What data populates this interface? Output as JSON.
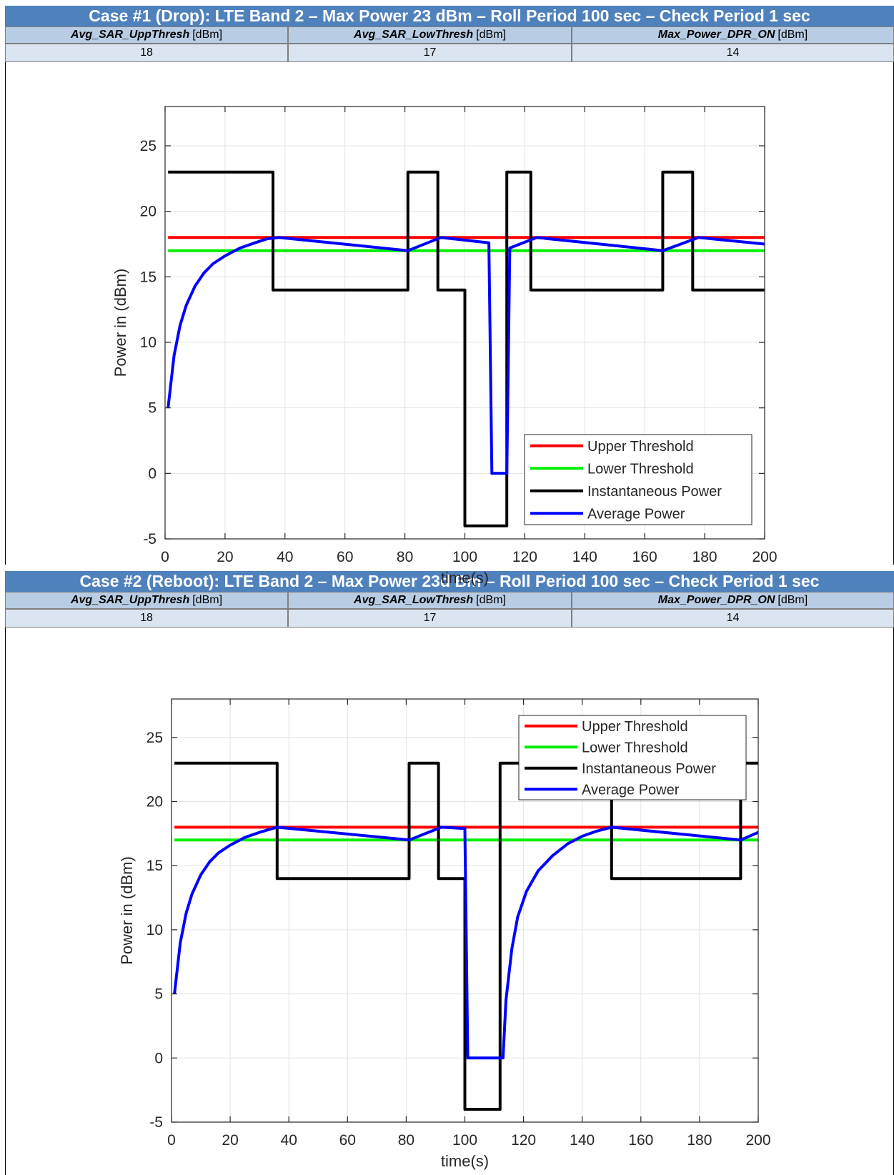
{
  "colors": {
    "title_bg": "#4f81bd",
    "header_bg": "#b8cce4",
    "value_bg": "#dbe5f1",
    "upper": "#ff0000",
    "lower": "#00ee00",
    "inst": "#000000",
    "avg": "#0000ff"
  },
  "sections": [
    {
      "title": "Case #1  (Drop): LTE Band 2 – Max Power 23 dBm – Roll Period 100 sec – Check Period 1 sec",
      "headers": [
        {
          "name": "Avg_SAR_UppThresh",
          "unit": "[dBm]"
        },
        {
          "name": "Avg_SAR_LowThresh",
          "unit": "[dBm]"
        },
        {
          "name": "Max_Power_DPR_ON",
          "unit": "[dBm]"
        }
      ],
      "values": [
        "18",
        "17",
        "14"
      ]
    },
    {
      "title": "Case #2 (Reboot): LTE Band 2 – Max Power 23d Bm – Roll Period 100 sec – Check Period 1 sec",
      "headers": [
        {
          "name": "Avg_SAR_UppThresh",
          "unit": "[dBm]"
        },
        {
          "name": "Avg_SAR_LowThresh",
          "unit": "[dBm]"
        },
        {
          "name": "Max_Power_DPR_ON",
          "unit": "[dBm]"
        }
      ],
      "values": [
        "18",
        "17",
        "14"
      ]
    }
  ],
  "chart_data": [
    {
      "type": "line",
      "xlabel": "time(s)",
      "ylabel": "Power in (dBm)",
      "xlim": [
        0,
        200
      ],
      "ylim": [
        -5,
        28
      ],
      "xticks": [
        0,
        20,
        40,
        60,
        80,
        100,
        120,
        140,
        160,
        180,
        200
      ],
      "yticks": [
        -5,
        0,
        5,
        10,
        15,
        20,
        25
      ],
      "grid": true,
      "legend_position": "lower-right",
      "series": [
        {
          "name": "Upper Threshold",
          "color": "#ff0000",
          "x": [
            1,
            200
          ],
          "y": [
            18,
            18
          ]
        },
        {
          "name": "Lower Threshold",
          "color": "#00ee00",
          "x": [
            1,
            200
          ],
          "y": [
            17,
            17
          ]
        },
        {
          "name": "Instantaneous Power",
          "color": "#000000",
          "x": [
            1,
            36,
            36,
            81,
            81,
            91,
            91,
            100,
            100,
            114,
            114,
            122,
            122,
            166,
            166,
            176,
            176,
            200
          ],
          "y": [
            23,
            23,
            14,
            14,
            23,
            23,
            14,
            14,
            -4,
            -4,
            23,
            23,
            14,
            14,
            23,
            23,
            14,
            14
          ]
        },
        {
          "name": "Average Power",
          "color": "#0000ff",
          "x": [
            1,
            3,
            5,
            7,
            10,
            13,
            16,
            20,
            25,
            30,
            34,
            38,
            81,
            92,
            108,
            109,
            114,
            115,
            124,
            166,
            178,
            200
          ],
          "y": [
            5,
            9,
            11.3,
            12.8,
            14.3,
            15.3,
            16,
            16.6,
            17.2,
            17.6,
            17.9,
            18,
            17,
            18,
            17.6,
            0,
            0,
            17.2,
            18,
            17,
            18,
            17.5
          ]
        }
      ]
    },
    {
      "type": "line",
      "xlabel": "time(s)",
      "ylabel": "Power in (dBm)",
      "xlim": [
        0,
        200
      ],
      "ylim": [
        -5,
        28
      ],
      "xticks": [
        0,
        20,
        40,
        60,
        80,
        100,
        120,
        140,
        160,
        180,
        200
      ],
      "yticks": [
        -5,
        0,
        5,
        10,
        15,
        20,
        25
      ],
      "grid": true,
      "legend_position": "top-right",
      "series": [
        {
          "name": "Upper Threshold",
          "color": "#ff0000",
          "x": [
            1,
            200
          ],
          "y": [
            18,
            18
          ]
        },
        {
          "name": "Lower Threshold",
          "color": "#00ee00",
          "x": [
            1,
            200
          ],
          "y": [
            17,
            17
          ]
        },
        {
          "name": "Instantaneous Power",
          "color": "#000000",
          "x": [
            1,
            36,
            36,
            81,
            81,
            91,
            91,
            100,
            100,
            112,
            112,
            150,
            150,
            194,
            194,
            200
          ],
          "y": [
            23,
            23,
            14,
            14,
            23,
            23,
            14,
            14,
            -4,
            -4,
            23,
            23,
            14,
            14,
            23,
            23
          ]
        },
        {
          "name": "Average Power",
          "color": "#0000ff",
          "x": [
            1,
            3,
            5,
            7,
            10,
            13,
            16,
            20,
            25,
            30,
            36,
            81,
            92,
            100,
            101,
            113,
            114,
            116,
            118,
            121,
            125,
            130,
            135,
            140,
            145,
            150,
            194,
            200
          ],
          "y": [
            5,
            9,
            11.3,
            12.8,
            14.3,
            15.3,
            16,
            16.6,
            17.2,
            17.6,
            18,
            17,
            18,
            17.9,
            0,
            0,
            4.5,
            8.5,
            11,
            13,
            14.6,
            15.8,
            16.7,
            17.3,
            17.7,
            18,
            17,
            17.6
          ]
        }
      ]
    }
  ]
}
